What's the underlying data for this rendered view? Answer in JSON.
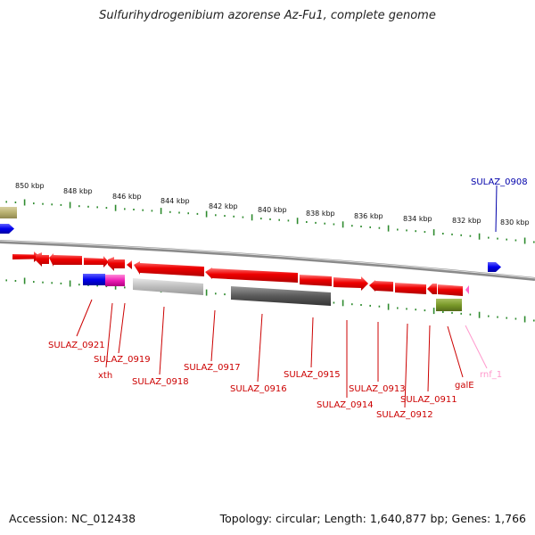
{
  "title": "Sulfurihydrogenibium azorense Az-Fu1, complete genome",
  "footer": {
    "accession": "Accession: NC_012438",
    "topology": "Topology: circular; Length: 1,640,877 bp; Genes: 1,766"
  },
  "ruler_labels": [
    "850 kbp",
    "848 kbp",
    "846 kbp",
    "844 kbp",
    "842 kbp",
    "840 kbp",
    "838 kbp",
    "836 kbp",
    "834 kbp",
    "832 kbp",
    "830 kbp"
  ],
  "colors": {
    "backbone": "#8a8a8a",
    "tick": "#2e8b2e",
    "gene_red": "#ee0000",
    "label_red": "#cc0000",
    "blue": "#0000ee",
    "magenta": "#ee1fb4",
    "light_gray": "#b8b8b8",
    "dark_gray": "#5a5a5a",
    "olive": "#7a9a2a",
    "khaki": "#b8b070",
    "pink": "#ff99cc"
  },
  "top_label": "SULAZ_0908",
  "gene_labels": [
    "SULAZ_0921",
    "xth",
    "SULAZ_0919",
    "SULAZ_0918",
    "SULAZ_0917",
    "SULAZ_0916",
    "SULAZ_0915",
    "SULAZ_0914",
    "SULAZ_0913",
    "SULAZ_0912",
    "SULAZ_0911",
    "galE",
    "rnf_1"
  ]
}
